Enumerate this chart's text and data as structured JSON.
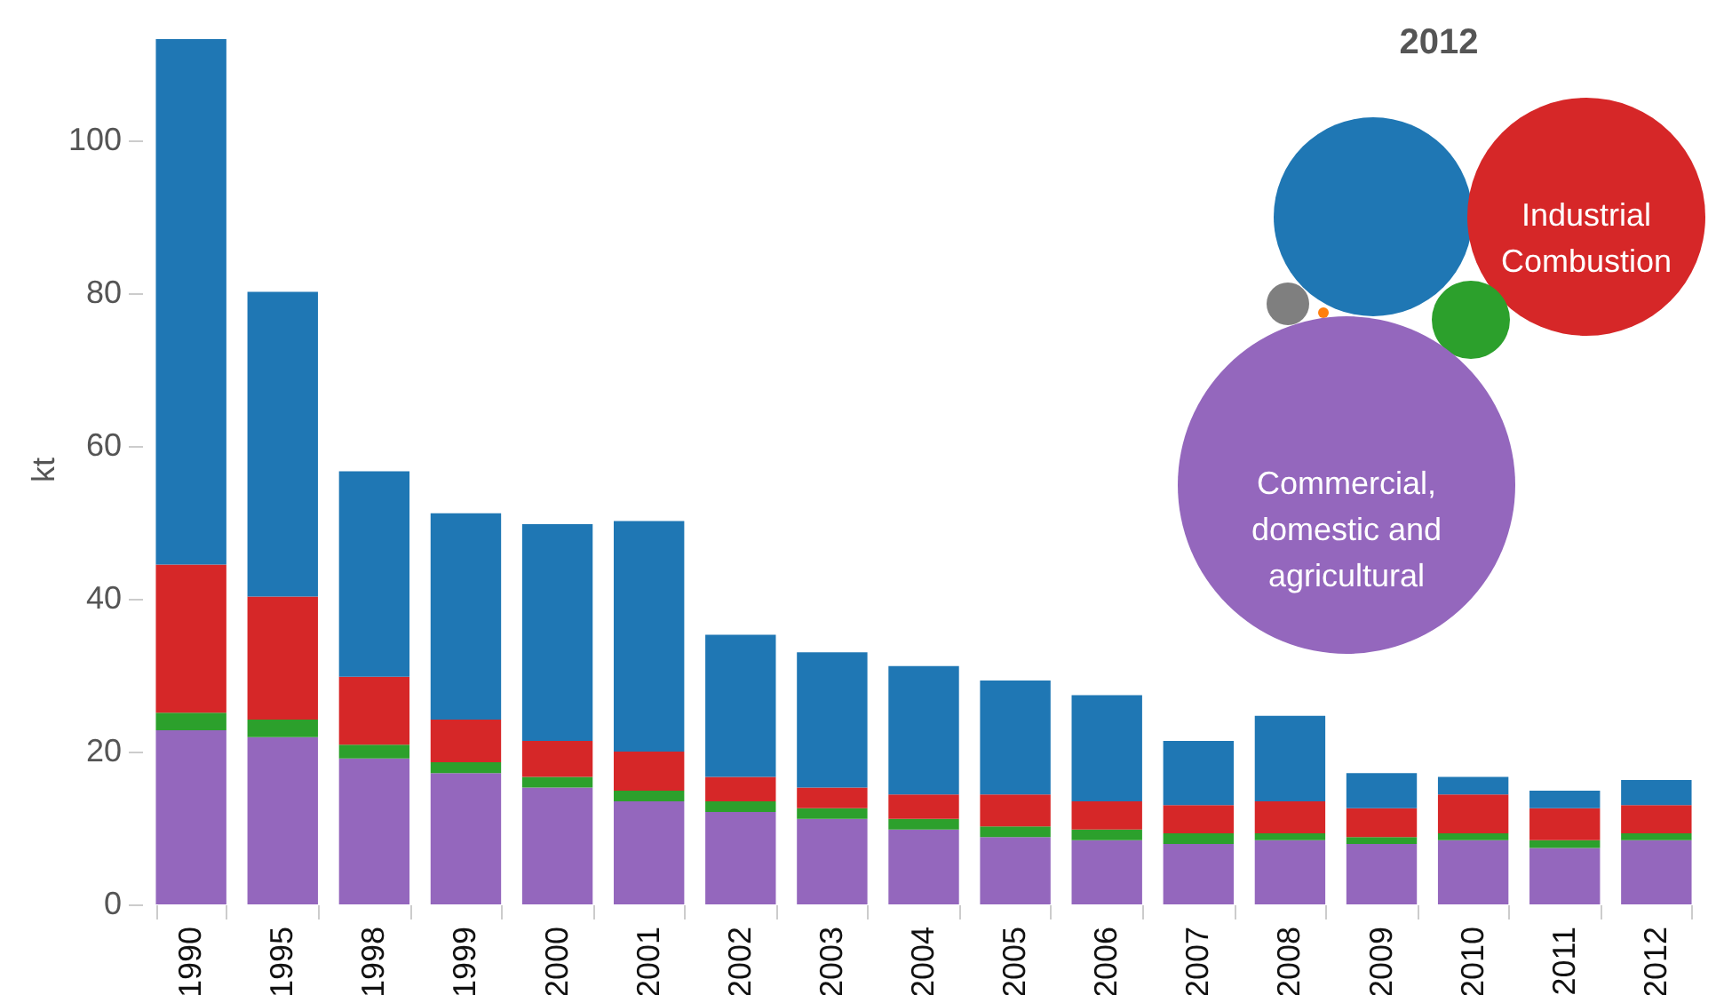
{
  "chart_data": [
    {
      "type": "bar",
      "stacked": true,
      "ylabel": "kt",
      "ylim": [
        0,
        114
      ],
      "yticks": [
        0,
        20,
        40,
        60,
        80,
        100
      ],
      "categories": [
        "1990",
        "1995",
        "1998",
        "1999",
        "2000",
        "2001",
        "2002",
        "2003",
        "2004",
        "2005",
        "2006",
        "2007",
        "2008",
        "2009",
        "2010",
        "2011",
        "2012"
      ],
      "series": [
        {
          "color": "#9467bd",
          "values": [
            22.8,
            21.9,
            19.1,
            17.2,
            15.3,
            13.5,
            12.1,
            11.2,
            9.8,
            8.8,
            8.4,
            7.9,
            8.4,
            7.9,
            8.4,
            7.4,
            8.4
          ]
        },
        {
          "color": "#2ca02c",
          "values": [
            2.3,
            2.3,
            1.8,
            1.4,
            1.4,
            1.4,
            1.4,
            1.4,
            1.4,
            1.4,
            1.4,
            1.4,
            0.9,
            0.9,
            0.9,
            1.0,
            0.9
          ]
        },
        {
          "color": "#d62728",
          "values": [
            19.4,
            16.1,
            8.9,
            5.6,
            4.7,
            5.1,
            3.2,
            2.7,
            3.2,
            4.2,
            3.7,
            3.7,
            4.2,
            3.8,
            5.1,
            4.2,
            3.7
          ]
        },
        {
          "color": "#1f77b4",
          "values": [
            68.8,
            39.9,
            26.9,
            27.0,
            28.4,
            30.2,
            18.6,
            17.7,
            16.8,
            14.9,
            13.9,
            8.4,
            11.2,
            4.6,
            2.3,
            2.3,
            3.3
          ]
        }
      ]
    },
    {
      "type": "other",
      "title": "2012",
      "annotations": [
        "Industrial Combustion",
        "Commercial, domestic and agricultural"
      ]
    }
  ]
}
